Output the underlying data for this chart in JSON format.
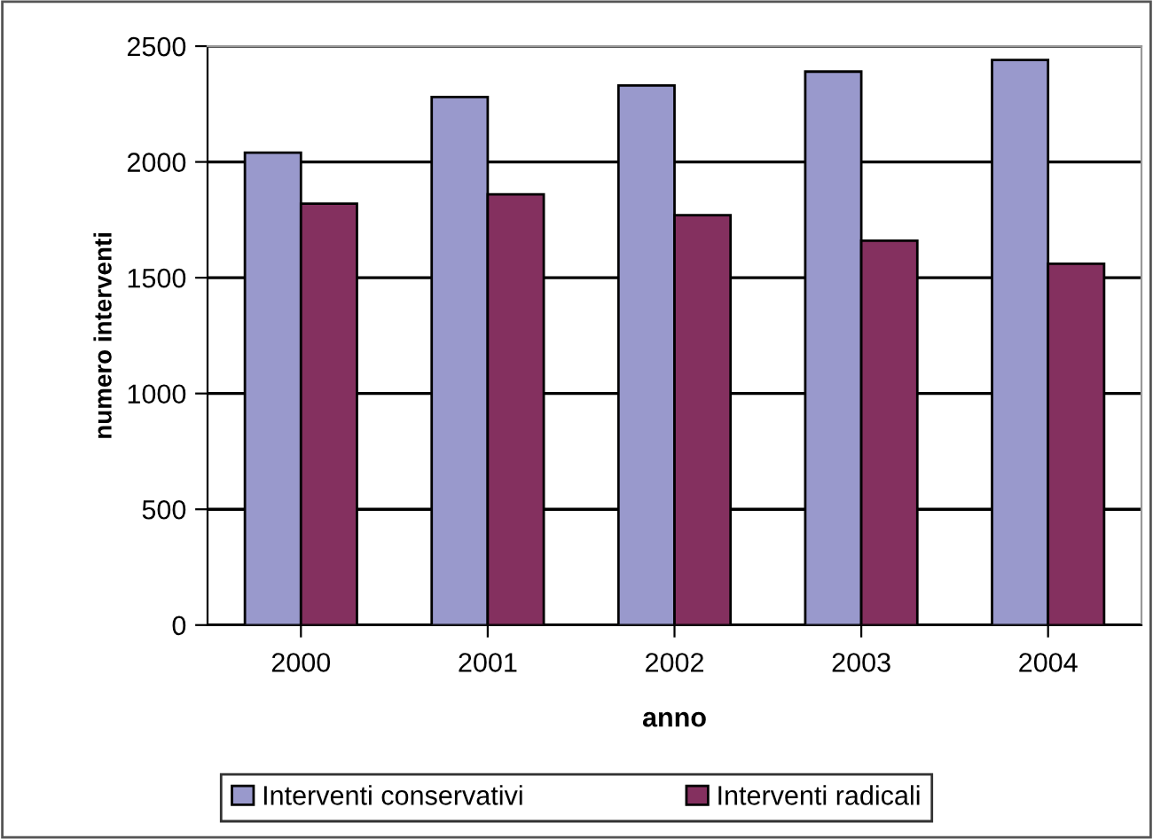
{
  "chart_data": {
    "type": "bar",
    "xlabel": "anno",
    "ylabel": "numero interventi",
    "categories": [
      "2000",
      "2001",
      "2002",
      "2003",
      "2004"
    ],
    "series": [
      {
        "name": "Interventi conservativi",
        "color": "#9999cc",
        "values": [
          2040,
          2280,
          2330,
          2390,
          2440
        ]
      },
      {
        "name": "Interventi radicali",
        "color": "#84305f",
        "values": [
          1820,
          1860,
          1770,
          1660,
          1560
        ]
      }
    ],
    "ylim": [
      0,
      2500
    ],
    "yticks": [
      0,
      500,
      1000,
      1500,
      2000,
      2500
    ],
    "grid": "y",
    "legend": "bottom"
  }
}
